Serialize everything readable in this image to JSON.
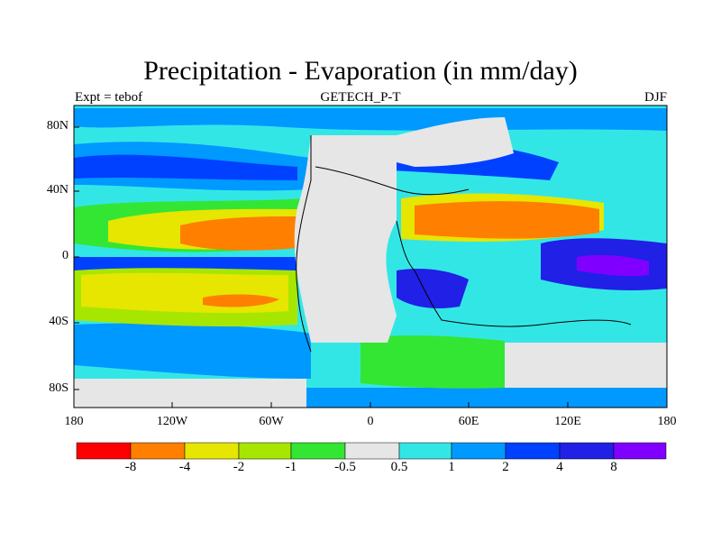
{
  "title": "Precipitation - Evaporation (in mm/day)",
  "subtitle_left": "Expt = tebof",
  "subtitle_center": "GETECH_P-T",
  "subtitle_right": "DJF",
  "lat_ticks": [
    "80N",
    "40N",
    "0",
    "40S",
    "80S"
  ],
  "lon_ticks": [
    "180",
    "120W",
    "60W",
    "0",
    "60E",
    "120E",
    "180"
  ],
  "colorbar": {
    "colors": [
      "#ff0000",
      "#ff7f00",
      "#e6e600",
      "#a6e600",
      "#33e633",
      "#e6e6e6",
      "#33e6e6",
      "#0099ff",
      "#0040ff",
      "#2020e6",
      "#8000ff"
    ],
    "labels": [
      "-8",
      "-4",
      "-2",
      "-1",
      "-0.5",
      "0.5",
      "1",
      "2",
      "4",
      "8"
    ]
  },
  "colors": {
    "land": "#e6e6e6",
    "coast": "#000000"
  }
}
